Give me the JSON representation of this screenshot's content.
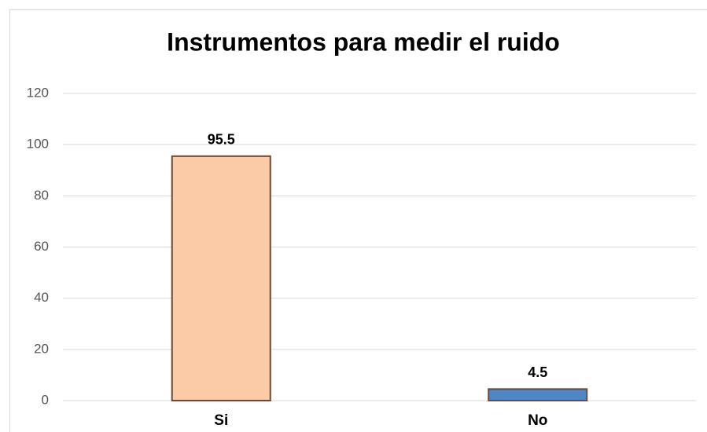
{
  "chart_data": {
    "type": "bar",
    "title": "Instrumentos para medir el ruido",
    "categories": [
      "Si",
      "No"
    ],
    "values": [
      95.5,
      4.5
    ],
    "colors": [
      "#fbcba8",
      "#4f86c6"
    ],
    "ylim": [
      0,
      120
    ],
    "yticks": [
      0,
      20,
      40,
      60,
      80,
      100,
      120
    ],
    "grid": true
  }
}
